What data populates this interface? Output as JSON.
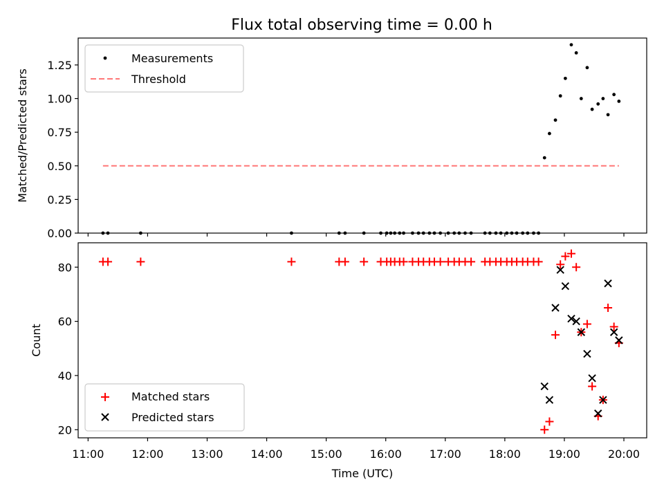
{
  "chart_data": [
    {
      "type": "scatter",
      "title": "Flux total observing time = 0.00 h",
      "ylabel": "Matched/Predicted stars",
      "xlim": [
        "10:50",
        "20:23"
      ],
      "ylim": [
        0,
        1.45
      ],
      "yticks": [
        "0.00",
        "0.25",
        "0.50",
        "0.75",
        "1.00",
        "1.25"
      ],
      "legend": "upper-left",
      "series": [
        {
          "name": "Measurements",
          "marker": "dot",
          "color": "#000000",
          "x": [
            "11:15",
            "11:20",
            "11:53",
            "14:25",
            "15:13",
            "15:19",
            "15:38",
            "15:55",
            "16:01",
            "16:05",
            "16:09",
            "16:14",
            "16:18",
            "16:27",
            "16:33",
            "16:38",
            "16:44",
            "16:49",
            "16:55",
            "17:03",
            "17:09",
            "17:14",
            "17:20",
            "17:26",
            "17:40",
            "17:45",
            "17:51",
            "17:56",
            "18:02",
            "18:07",
            "18:12",
            "18:18",
            "18:23",
            "18:29",
            "18:34",
            "18:40",
            "18:45",
            "18:51",
            "18:56",
            "19:01",
            "19:07",
            "19:12",
            "19:17",
            "19:23",
            "19:28",
            "19:34",
            "19:39",
            "19:44",
            "19:50",
            "19:55"
          ],
          "y": [
            0,
            0,
            0,
            0,
            0,
            0,
            0,
            0,
            0,
            0,
            0,
            0,
            0,
            0,
            0,
            0,
            0,
            0,
            0,
            0,
            0,
            0,
            0,
            0,
            0,
            0,
            0,
            0,
            0,
            0,
            0,
            0,
            0,
            0,
            0,
            0.56,
            0.74,
            0.84,
            1.02,
            1.15,
            1.4,
            1.34,
            1.0,
            1.23,
            0.92,
            0.96,
            1.0,
            0.88,
            1.03,
            0.98
          ]
        },
        {
          "name": "Threshold",
          "line": "dashed",
          "color": "#ff7777",
          "x": [
            "11:15",
            "19:55"
          ],
          "y": [
            0.5,
            0.5
          ]
        }
      ]
    },
    {
      "type": "scatter",
      "xlabel": "Time (UTC)",
      "ylabel": "Count",
      "xlim": [
        "10:50",
        "20:23"
      ],
      "ylim": [
        17,
        89
      ],
      "yticks": [
        "20",
        "40",
        "60",
        "80"
      ],
      "xticks": [
        "11:00",
        "12:00",
        "13:00",
        "14:00",
        "15:00",
        "16:00",
        "17:00",
        "18:00",
        "19:00",
        "20:00"
      ],
      "legend": "lower-left",
      "series": [
        {
          "name": "Matched stars",
          "marker": "plus",
          "color": "#ff0000",
          "x": [
            "11:15",
            "11:20",
            "11:53",
            "14:25",
            "15:13",
            "15:19",
            "15:38",
            "15:55",
            "16:01",
            "16:05",
            "16:09",
            "16:14",
            "16:18",
            "16:27",
            "16:33",
            "16:38",
            "16:44",
            "16:49",
            "16:55",
            "17:03",
            "17:09",
            "17:14",
            "17:20",
            "17:26",
            "17:40",
            "17:45",
            "17:51",
            "17:56",
            "18:02",
            "18:07",
            "18:12",
            "18:18",
            "18:23",
            "18:29",
            "18:34",
            "18:40",
            "18:45",
            "18:51",
            "18:56",
            "19:01",
            "19:07",
            "19:12",
            "19:17",
            "19:23",
            "19:28",
            "19:34",
            "19:39",
            "19:44",
            "19:50",
            "19:55"
          ],
          "y": [
            82,
            82,
            82,
            82,
            82,
            82,
            82,
            82,
            82,
            82,
            82,
            82,
            82,
            82,
            82,
            82,
            82,
            82,
            82,
            82,
            82,
            82,
            82,
            82,
            82,
            82,
            82,
            82,
            82,
            82,
            82,
            82,
            82,
            82,
            82,
            20,
            23,
            55,
            81,
            84,
            85,
            80,
            56,
            59,
            36,
            25,
            31,
            65,
            58,
            52
          ]
        },
        {
          "name": "Predicted stars",
          "marker": "cross",
          "color": "#000000",
          "x": [
            "18:40",
            "18:45",
            "18:51",
            "18:56",
            "19:01",
            "19:07",
            "19:12",
            "19:17",
            "19:23",
            "19:28",
            "19:34",
            "19:39",
            "19:44",
            "19:50",
            "19:55"
          ],
          "y": [
            36,
            31,
            65,
            79,
            73,
            61,
            60,
            56,
            48,
            39,
            26,
            31,
            74,
            56,
            53
          ]
        }
      ]
    }
  ]
}
